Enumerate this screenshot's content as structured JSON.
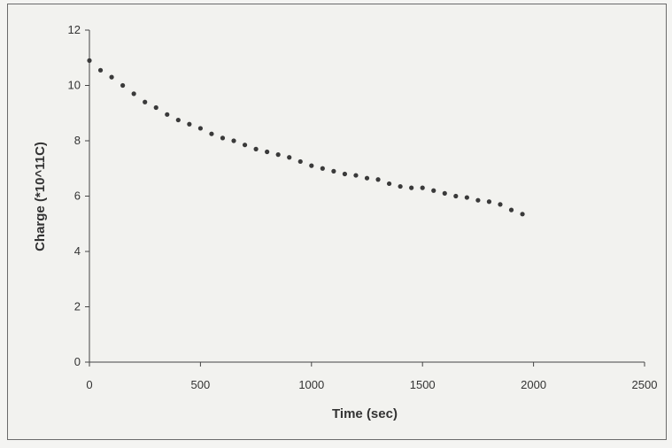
{
  "chart_data": {
    "type": "scatter",
    "title": "",
    "xlabel": "Time (sec)",
    "ylabel": "Charge (*10^11C)",
    "xlim": [
      0,
      2500
    ],
    "ylim": [
      0,
      12
    ],
    "xticks": [
      0,
      500,
      1000,
      1500,
      2000,
      2500
    ],
    "yticks": [
      0,
      2,
      4,
      6,
      8,
      10,
      12
    ],
    "grid": false,
    "legend": "none",
    "marker_color": "#3a3a3a",
    "series": [
      {
        "x": [
          0,
          50,
          100,
          150,
          200,
          250,
          300,
          350,
          400,
          450,
          500,
          550,
          600,
          650,
          700,
          750,
          800,
          850,
          900,
          950,
          1000,
          1050,
          1100,
          1150,
          1200,
          1250,
          1300,
          1350,
          1400,
          1450,
          1500,
          1550,
          1600,
          1650,
          1700,
          1750,
          1800,
          1850,
          1900,
          1950
        ],
        "y": [
          10.9,
          10.55,
          10.3,
          10.0,
          9.7,
          9.4,
          9.2,
          8.95,
          8.75,
          8.6,
          8.45,
          8.25,
          8.1,
          8.0,
          7.85,
          7.7,
          7.6,
          7.5,
          7.4,
          7.25,
          7.1,
          7.0,
          6.9,
          6.8,
          6.75,
          6.65,
          6.6,
          6.45,
          6.35,
          6.3,
          6.3,
          6.2,
          6.1,
          6.0,
          5.95,
          5.85,
          5.8,
          5.7,
          5.5,
          5.35
        ]
      }
    ]
  }
}
